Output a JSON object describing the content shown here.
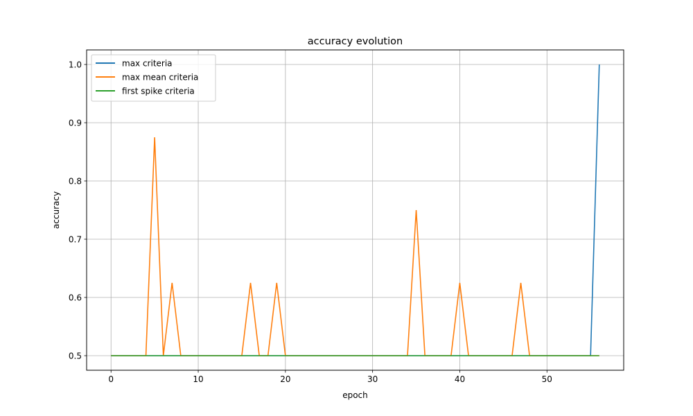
{
  "chart_data": {
    "type": "line",
    "title": "accuracy evolution",
    "xlabel": "epoch",
    "ylabel": "accuracy",
    "xlim": [
      -2.8,
      58.8
    ],
    "ylim": [
      0.475,
      1.025
    ],
    "xticks": [
      0,
      10,
      20,
      30,
      40,
      50
    ],
    "yticks": [
      0.5,
      0.6,
      0.7,
      0.8,
      0.9,
      1.0
    ],
    "xtick_labels": [
      "0",
      "10",
      "20",
      "30",
      "40",
      "50"
    ],
    "ytick_labels": [
      "0.5",
      "0.6",
      "0.7",
      "0.8",
      "0.9",
      "1.0"
    ],
    "grid": true,
    "legend_position": "top-left",
    "series": [
      {
        "name": "max criteria",
        "color": "#1f77b4",
        "points": [
          [
            0,
            0.5
          ],
          [
            55,
            0.5
          ],
          [
            56,
            1.0
          ]
        ]
      },
      {
        "name": "max mean criteria",
        "color": "#ff7f0e",
        "points": [
          [
            0,
            0.5
          ],
          [
            4,
            0.5
          ],
          [
            5,
            0.875
          ],
          [
            6,
            0.5
          ],
          [
            7,
            0.625
          ],
          [
            8,
            0.5
          ],
          [
            15,
            0.5
          ],
          [
            16,
            0.625
          ],
          [
            17,
            0.5
          ],
          [
            18,
            0.5
          ],
          [
            19,
            0.625
          ],
          [
            20,
            0.5
          ],
          [
            34,
            0.5
          ],
          [
            35,
            0.75
          ],
          [
            36,
            0.5
          ],
          [
            39,
            0.5
          ],
          [
            40,
            0.625
          ],
          [
            41,
            0.5
          ],
          [
            46,
            0.5
          ],
          [
            47,
            0.625
          ],
          [
            48,
            0.5
          ],
          [
            56,
            0.5
          ]
        ]
      },
      {
        "name": "first spike criteria",
        "color": "#2ca02c",
        "points": [
          [
            0,
            0.5
          ],
          [
            56,
            0.5
          ]
        ]
      }
    ]
  }
}
